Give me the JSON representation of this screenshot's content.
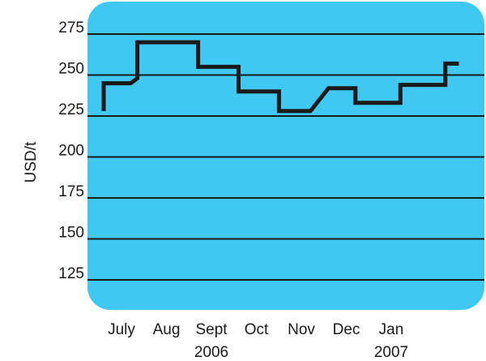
{
  "chart_data": {
    "type": "line",
    "title": "",
    "xlabel": "",
    "ylabel": "USD/t",
    "ylim": [
      100,
      290
    ],
    "yticks": [
      125,
      150,
      175,
      200,
      225,
      250,
      275
    ],
    "grid": true,
    "legend": "none",
    "background_color": "#3ec8f2",
    "gridline_color": "#1a1a1a",
    "line_color": "#1a1a1a",
    "x_categories": [
      "July",
      "Aug",
      "Sept",
      "Oct",
      "Nov",
      "Dec",
      "Jan"
    ],
    "year_labels": [
      {
        "label": "2006",
        "under": "Sept"
      },
      {
        "label": "2007",
        "under": "Jan"
      }
    ],
    "series": [
      {
        "points": [
          {
            "x": 0.0,
            "y": 228
          },
          {
            "x": 0.0,
            "y": 245
          },
          {
            "x": 0.6,
            "y": 245
          },
          {
            "x": 0.75,
            "y": 248
          },
          {
            "x": 0.75,
            "y": 270
          },
          {
            "x": 2.1,
            "y": 270
          },
          {
            "x": 2.1,
            "y": 255
          },
          {
            "x": 3.0,
            "y": 255
          },
          {
            "x": 3.0,
            "y": 240
          },
          {
            "x": 3.9,
            "y": 240
          },
          {
            "x": 3.9,
            "y": 228
          },
          {
            "x": 4.6,
            "y": 228
          },
          {
            "x": 5.0,
            "y": 242
          },
          {
            "x": 5.6,
            "y": 242
          },
          {
            "x": 5.6,
            "y": 233
          },
          {
            "x": 6.6,
            "y": 233
          },
          {
            "x": 6.6,
            "y": 244
          },
          {
            "x": 7.6,
            "y": 244
          },
          {
            "x": 7.6,
            "y": 257
          },
          {
            "x": 7.9,
            "y": 257
          }
        ]
      }
    ]
  }
}
